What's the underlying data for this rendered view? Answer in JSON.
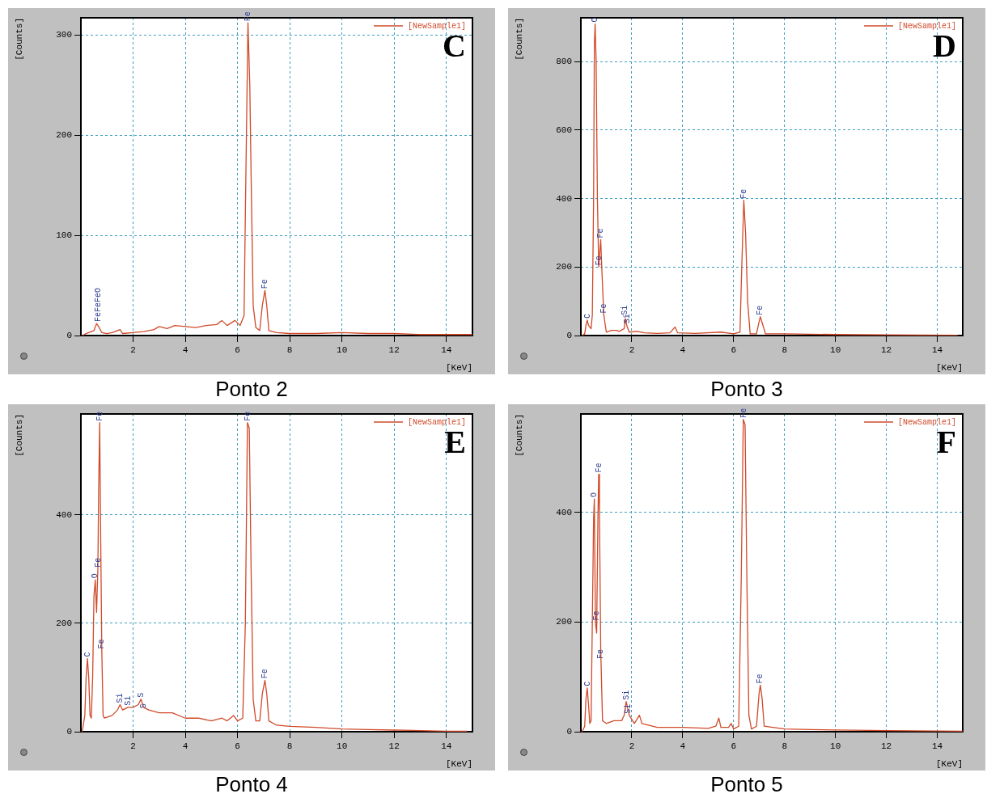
{
  "chart_data": [
    {
      "type": "line",
      "title": "Ponto 2",
      "xlabel": "[KeV]",
      "ylabel": "[Counts]",
      "xlim": [
        0,
        15
      ],
      "xticks": [
        2,
        4,
        6,
        8,
        10,
        12,
        14
      ],
      "ylim": [
        0,
        317
      ],
      "yticks": [
        0,
        100,
        200,
        300
      ],
      "grid": true,
      "legend": "top right",
      "series": [
        {
          "name": "[NewSample1]",
          "color": "#d04a2a",
          "x": [
            0.05,
            0.2,
            0.5,
            0.6,
            0.7,
            0.8,
            1.0,
            1.2,
            1.5,
            1.6,
            2.0,
            2.4,
            2.8,
            3.0,
            3.3,
            3.6,
            4.0,
            4.4,
            4.8,
            5.2,
            5.4,
            5.6,
            5.9,
            6.1,
            6.25,
            6.32,
            6.4,
            6.47,
            6.52,
            6.6,
            6.7,
            6.85,
            6.95,
            7.05,
            7.12,
            7.2,
            7.5,
            8,
            9,
            10,
            11,
            12,
            13,
            14,
            15
          ],
          "values": [
            0,
            2,
            5,
            12,
            8,
            3,
            2,
            3,
            6,
            2,
            3,
            4,
            6,
            9,
            7,
            10,
            9,
            8,
            10,
            11,
            15,
            10,
            15,
            10,
            20,
            160,
            312,
            250,
            160,
            30,
            8,
            5,
            30,
            45,
            30,
            5,
            3,
            2,
            2,
            3,
            2,
            2,
            1,
            1,
            1
          ]
        }
      ],
      "annotations": [
        "C",
        {
          "text": "FeFeFeO",
          "x": 0.65,
          "y": 12
        },
        {
          "text": "Fe",
          "x": 6.4,
          "y": 312
        },
        {
          "text": "Fe",
          "x": 7.05,
          "y": 45
        }
      ]
    },
    {
      "type": "line",
      "title": "Ponto 3",
      "xlabel": "[KeV]",
      "ylabel": "[Counts]",
      "xlim": [
        0,
        15
      ],
      "xticks": [
        2,
        4,
        6,
        8,
        10,
        12,
        14
      ],
      "ylim": [
        0,
        928
      ],
      "yticks": [
        0,
        200,
        400,
        600,
        800
      ],
      "grid": true,
      "legend": "top right",
      "series": [
        {
          "name": "[NewSample1]",
          "color": "#d04a2a",
          "x": [
            0.05,
            0.15,
            0.2,
            0.25,
            0.3,
            0.4,
            0.45,
            0.5,
            0.53,
            0.56,
            0.6,
            0.65,
            0.7,
            0.75,
            0.78,
            0.82,
            0.9,
            1.0,
            1.2,
            1.4,
            1.5,
            1.7,
            1.75,
            1.8,
            1.9,
            2.2,
            2.5,
            3.0,
            3.5,
            3.7,
            3.8,
            4.5,
            5.5,
            6.0,
            6.25,
            6.32,
            6.4,
            6.47,
            6.55,
            6.65,
            6.9,
            7.0,
            7.05,
            7.15,
            7.25,
            8,
            9,
            10,
            12,
            14.8
          ],
          "values": [
            0,
            5,
            30,
            45,
            30,
            20,
            60,
            400,
            850,
            910,
            800,
            400,
            200,
            250,
            280,
            200,
            60,
            10,
            15,
            15,
            12,
            20,
            50,
            30,
            10,
            12,
            8,
            6,
            8,
            25,
            8,
            6,
            10,
            5,
            10,
            200,
            395,
            300,
            100,
            5,
            5,
            40,
            55,
            30,
            5,
            5,
            4,
            3,
            2,
            1
          ]
        }
      ],
      "annotations": [
        "D",
        {
          "text": "C",
          "x": 0.25,
          "y": 45
        },
        {
          "text": "O",
          "x": 0.56,
          "y": 910
        },
        {
          "text": "Fe",
          "x": 0.78,
          "y": 280
        },
        {
          "text": "Fe",
          "x": 0.7,
          "y": 200
        },
        {
          "text": "Fe",
          "x": 0.9,
          "y": 60
        },
        {
          "text": "Si",
          "x": 1.72,
          "y": 55
        },
        {
          "text": "Si",
          "x": 1.82,
          "y": 30
        },
        {
          "text": "Fe",
          "x": 6.4,
          "y": 395
        },
        {
          "text": "Fe",
          "x": 7.05,
          "y": 55
        }
      ]
    },
    {
      "type": "line",
      "title": "Ponto 4",
      "xlabel": "[KeV]",
      "ylabel": "[Counts]",
      "xlim": [
        0,
        15
      ],
      "xticks": [
        2,
        4,
        6,
        8,
        10,
        12,
        14
      ],
      "ylim": [
        0,
        586
      ],
      "yticks": [
        0,
        200,
        400
      ],
      "grid": true,
      "legend": "top right",
      "series": [
        {
          "name": "[NewSample1]",
          "color": "#d04a2a",
          "x": [
            0.05,
            0.15,
            0.2,
            0.25,
            0.3,
            0.35,
            0.4,
            0.45,
            0.5,
            0.55,
            0.6,
            0.65,
            0.68,
            0.72,
            0.75,
            0.8,
            0.85,
            0.9,
            1.2,
            1.4,
            1.5,
            1.6,
            1.8,
            2.0,
            2.2,
            2.3,
            2.4,
            2.6,
            3.0,
            3.5,
            4.0,
            4.5,
            5.0,
            5.4,
            5.6,
            5.85,
            6.0,
            6.2,
            6.3,
            6.38,
            6.45,
            6.52,
            6.6,
            6.7,
            6.85,
            6.95,
            7.05,
            7.12,
            7.2,
            7.5,
            8,
            9,
            10,
            11,
            12,
            13,
            14,
            14.8
          ],
          "values": [
            0,
            30,
            100,
            135,
            100,
            30,
            25,
            100,
            250,
            280,
            220,
            300,
            450,
            570,
            400,
            150,
            30,
            25,
            30,
            40,
            50,
            40,
            45,
            45,
            50,
            60,
            45,
            40,
            35,
            35,
            25,
            25,
            20,
            25,
            20,
            30,
            20,
            25,
            200,
            570,
            560,
            300,
            60,
            20,
            20,
            70,
            95,
            70,
            20,
            12,
            10,
            8,
            5,
            4,
            3,
            2,
            1,
            1
          ]
        }
      ],
      "annotations": [
        "E",
        {
          "text": "C",
          "x": 0.25,
          "y": 135
        },
        {
          "text": "O",
          "x": 0.55,
          "y": 280
        },
        {
          "text": "Fe",
          "x": 0.65,
          "y": 300
        },
        {
          "text": "Fe",
          "x": 0.72,
          "y": 570
        },
        {
          "text": "Fe",
          "x": 0.8,
          "y": 150
        },
        {
          "text": "Si",
          "x": 1.5,
          "y": 50
        },
        {
          "text": "Si",
          "x": 1.8,
          "y": 45
        },
        {
          "text": "S",
          "x": 2.3,
          "y": 60
        },
        {
          "text": "S",
          "x": 2.4,
          "y": 40
        },
        {
          "text": "Fe",
          "x": 6.4,
          "y": 570
        },
        {
          "text": "Fe",
          "x": 7.05,
          "y": 95
        }
      ]
    },
    {
      "type": "line",
      "title": "Ponto 5",
      "xlabel": "[KeV]",
      "ylabel": "[Counts]",
      "xlim": [
        0,
        15
      ],
      "xticks": [
        2,
        4,
        6,
        8,
        10,
        12,
        14
      ],
      "ylim": [
        0,
        580
      ],
      "yticks": [
        0,
        200,
        400
      ],
      "grid": true,
      "legend": "top right",
      "series": [
        {
          "name": "[NewSample1]",
          "color": "#d04a2a",
          "x": [
            0.05,
            0.15,
            0.2,
            0.25,
            0.3,
            0.35,
            0.4,
            0.45,
            0.5,
            0.53,
            0.57,
            0.62,
            0.67,
            0.7,
            0.73,
            0.78,
            0.85,
            1.0,
            1.3,
            1.6,
            1.7,
            1.78,
            1.9,
            2.1,
            2.3,
            2.4,
            3.0,
            4.0,
            5.0,
            5.3,
            5.42,
            5.5,
            5.8,
            5.9,
            6.0,
            6.2,
            6.3,
            6.38,
            6.45,
            6.52,
            6.6,
            6.7,
            6.9,
            7.0,
            7.05,
            7.12,
            7.2,
            8,
            9,
            10,
            12,
            15
          ],
          "values": [
            0,
            10,
            60,
            80,
            50,
            15,
            20,
            200,
            390,
            425,
            200,
            180,
            390,
            470,
            400,
            150,
            20,
            15,
            20,
            20,
            30,
            55,
            30,
            15,
            30,
            15,
            8,
            8,
            6,
            10,
            25,
            8,
            8,
            15,
            5,
            10,
            280,
            570,
            560,
            280,
            30,
            5,
            10,
            70,
            85,
            60,
            10,
            5,
            4,
            3,
            2,
            1
          ]
        }
      ],
      "annotations": [
        "F",
        {
          "text": "C",
          "x": 0.25,
          "y": 80
        },
        {
          "text": "O",
          "x": 0.53,
          "y": 425
        },
        {
          "text": "Fe",
          "x": 0.7,
          "y": 470
        },
        {
          "text": "Fe",
          "x": 0.62,
          "y": 200
        },
        {
          "text": "Fe",
          "x": 0.78,
          "y": 130
        },
        {
          "text": "Si",
          "x": 1.78,
          "y": 55
        },
        {
          "text": "Si",
          "x": 1.86,
          "y": 30
        },
        {
          "text": "Fe",
          "x": 6.4,
          "y": 570
        },
        {
          "text": "Fe",
          "x": 7.05,
          "y": 85
        }
      ]
    }
  ]
}
